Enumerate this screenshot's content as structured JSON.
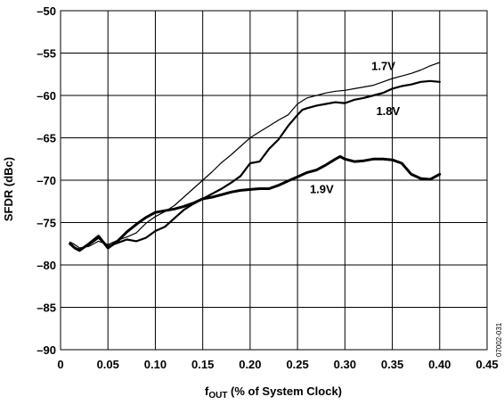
{
  "chart_data": {
    "type": "line",
    "title": "",
    "xlabel": {
      "main": "f",
      "sub": "OUT",
      "rest": " (% of System Clock)"
    },
    "ylabel": "SFDR (dBc)",
    "xlim": [
      0,
      0.45
    ],
    "ylim": [
      -90,
      -50
    ],
    "x_ticks": [
      0,
      0.05,
      0.1,
      0.15,
      0.2,
      0.25,
      0.3,
      0.35,
      0.4,
      0.45
    ],
    "x_tick_labels": [
      "0",
      "0.05",
      "0.10",
      "0.15",
      "0.20",
      "0.25",
      "0.30",
      "0.35",
      "0.40",
      "0.45"
    ],
    "y_ticks": [
      -90,
      -85,
      -80,
      -75,
      -70,
      -65,
      -60,
      -55,
      -50
    ],
    "y_tick_labels": [
      "–90",
      "–85",
      "–80",
      "–75",
      "–70",
      "–65",
      "–60",
      "–55",
      "–50"
    ],
    "grid": true,
    "figure_code": "07002-031",
    "series": [
      {
        "name": "1.7V",
        "color": "#000000",
        "weight": "thin",
        "x": [
          0.01,
          0.015,
          0.02,
          0.03,
          0.04,
          0.05,
          0.06,
          0.07,
          0.08,
          0.09,
          0.1,
          0.11,
          0.12,
          0.13,
          0.14,
          0.15,
          0.16,
          0.17,
          0.18,
          0.19,
          0.2,
          0.21,
          0.22,
          0.23,
          0.24,
          0.25,
          0.26,
          0.27,
          0.28,
          0.29,
          0.3,
          0.31,
          0.32,
          0.33,
          0.34,
          0.35,
          0.36,
          0.37,
          0.38,
          0.39,
          0.4
        ],
        "y": [
          -77.3,
          -77.6,
          -78.0,
          -77.8,
          -77.2,
          -77.6,
          -77.1,
          -76.7,
          -76.2,
          -75.1,
          -74.3,
          -73.7,
          -73.0,
          -72.0,
          -71.0,
          -70.0,
          -69.0,
          -67.9,
          -67.0,
          -66.0,
          -65.0,
          -64.3,
          -63.6,
          -62.9,
          -62.3,
          -61.0,
          -60.3,
          -60.0,
          -59.7,
          -59.5,
          -59.4,
          -59.2,
          -59.0,
          -58.8,
          -58.4,
          -58.0,
          -57.7,
          -57.4,
          -57.0,
          -56.5,
          -56.1
        ]
      },
      {
        "name": "1.8V",
        "color": "#000000",
        "weight": "medium",
        "x": [
          0.01,
          0.015,
          0.02,
          0.03,
          0.04,
          0.05,
          0.06,
          0.07,
          0.08,
          0.09,
          0.1,
          0.11,
          0.12,
          0.13,
          0.14,
          0.15,
          0.16,
          0.17,
          0.18,
          0.19,
          0.2,
          0.21,
          0.22,
          0.23,
          0.24,
          0.25,
          0.255,
          0.26,
          0.27,
          0.28,
          0.29,
          0.3,
          0.31,
          0.32,
          0.33,
          0.34,
          0.35,
          0.36,
          0.37,
          0.38,
          0.39,
          0.4
        ],
        "y": [
          -77.5,
          -78.0,
          -78.2,
          -77.6,
          -76.8,
          -77.8,
          -77.4,
          -77.0,
          -77.2,
          -76.8,
          -76.0,
          -75.5,
          -74.5,
          -73.5,
          -72.8,
          -72.2,
          -71.6,
          -71.0,
          -70.3,
          -69.5,
          -68.0,
          -67.8,
          -66.3,
          -65.2,
          -63.6,
          -62.3,
          -61.7,
          -61.5,
          -61.2,
          -61.0,
          -60.8,
          -60.9,
          -60.5,
          -60.3,
          -60.0,
          -59.7,
          -59.2,
          -58.9,
          -58.7,
          -58.4,
          -58.3,
          -58.4
        ]
      },
      {
        "name": "1.9V",
        "color": "#000000",
        "weight": "thick",
        "x": [
          0.01,
          0.015,
          0.02,
          0.03,
          0.04,
          0.05,
          0.06,
          0.07,
          0.08,
          0.09,
          0.1,
          0.11,
          0.12,
          0.13,
          0.14,
          0.15,
          0.16,
          0.17,
          0.18,
          0.19,
          0.2,
          0.21,
          0.22,
          0.23,
          0.24,
          0.25,
          0.26,
          0.27,
          0.28,
          0.29,
          0.295,
          0.3,
          0.31,
          0.32,
          0.33,
          0.34,
          0.35,
          0.36,
          0.37,
          0.38,
          0.39,
          0.4
        ],
        "y": [
          -77.5,
          -78.0,
          -78.3,
          -77.5,
          -76.6,
          -78.0,
          -77.2,
          -76.1,
          -75.2,
          -74.4,
          -73.8,
          -73.6,
          -73.4,
          -73.1,
          -72.7,
          -72.2,
          -72.0,
          -71.7,
          -71.4,
          -71.2,
          -71.1,
          -71.0,
          -71.0,
          -70.6,
          -70.1,
          -69.6,
          -69.1,
          -68.8,
          -68.2,
          -67.5,
          -67.2,
          -67.5,
          -67.8,
          -67.7,
          -67.5,
          -67.5,
          -67.6,
          -68.0,
          -69.3,
          -69.8,
          -69.9,
          -69.3
        ]
      }
    ]
  }
}
